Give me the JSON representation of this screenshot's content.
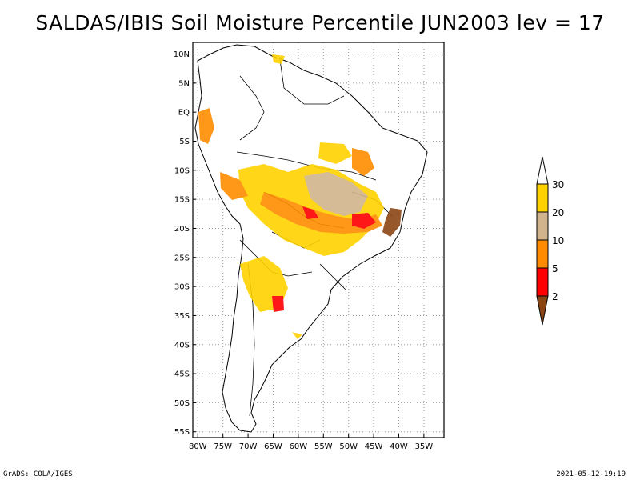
{
  "title": "SALDAS/IBIS Soil Moisture Percentile JUN2003 lev = 17",
  "footer_left": "GrADS: COLA/IGES",
  "footer_right": "2021-05-12-19:19",
  "map": {
    "lon_range": [
      -81,
      -31
    ],
    "lat_range": [
      -56,
      12
    ],
    "lat_ticks": [
      {
        "value": 10,
        "label": "10N"
      },
      {
        "value": 5,
        "label": "5N"
      },
      {
        "value": 0,
        "label": "EQ"
      },
      {
        "value": -5,
        "label": "5S"
      },
      {
        "value": -10,
        "label": "10S"
      },
      {
        "value": -15,
        "label": "15S"
      },
      {
        "value": -20,
        "label": "20S"
      },
      {
        "value": -25,
        "label": "25S"
      },
      {
        "value": -30,
        "label": "30S"
      },
      {
        "value": -35,
        "label": "35S"
      },
      {
        "value": -40,
        "label": "40S"
      },
      {
        "value": -45,
        "label": "45S"
      },
      {
        "value": -50,
        "label": "50S"
      },
      {
        "value": -55,
        "label": "55S"
      }
    ],
    "lon_ticks": [
      {
        "value": -80,
        "label": "80W"
      },
      {
        "value": -75,
        "label": "75W"
      },
      {
        "value": -70,
        "label": "70W"
      },
      {
        "value": -65,
        "label": "65W"
      },
      {
        "value": -60,
        "label": "60W"
      },
      {
        "value": -55,
        "label": "55W"
      },
      {
        "value": -50,
        "label": "50W"
      },
      {
        "value": -45,
        "label": "45W"
      },
      {
        "value": -40,
        "label": "40W"
      },
      {
        "value": -35,
        "label": "35W"
      }
    ],
    "grid": true
  },
  "colorbar": {
    "labels": [
      "30",
      "20",
      "10",
      "5",
      "2"
    ],
    "colors": {
      "above_30": "#ffffff",
      "20_30": "#ffd200",
      "10_20": "#d2b48c",
      "5_10": "#ff8c00",
      "2_5": "#ff0000",
      "below_2": "#8b4513"
    }
  },
  "colors": {
    "yellow": "#ffd200",
    "tan": "#d2b48c",
    "orange": "#ff8c00",
    "red": "#ff0000",
    "brown": "#8b4513"
  }
}
